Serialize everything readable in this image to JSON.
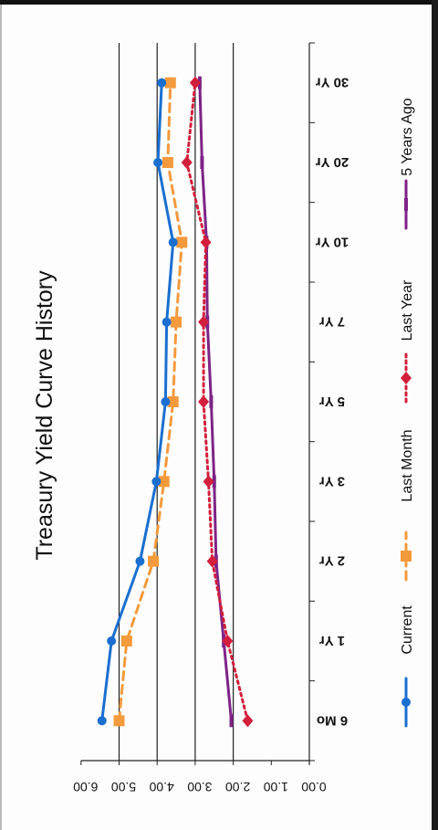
{
  "chart_data": {
    "type": "line",
    "title": "Treasury Yield Curve History",
    "categories": [
      "6 Mo",
      "1 Yr",
      "2 Yr",
      "3 Yr",
      "5 Yr",
      "7 Yr",
      "10 Yr",
      "20 Yr",
      "30 Yr"
    ],
    "y_ticks": [
      "0.00",
      "1.00",
      "2.00",
      "3.00",
      "4.00",
      "5.00",
      "6.00"
    ],
    "ylim": [
      0,
      6
    ],
    "grid": "horizontal major gridlines at 2.00, 3.00, 4.00, 5.00",
    "orientation": "rotated 90 degrees clockwise",
    "legend_position": "bottom",
    "series": [
      {
        "name": "Current",
        "values": [
          5.45,
          5.2,
          4.45,
          4.02,
          3.78,
          3.75,
          3.58,
          3.98,
          3.88
        ],
        "color": "#1a6fd0",
        "style": "solid",
        "marker": "circle"
      },
      {
        "name": "Last Month",
        "values": [
          5.0,
          4.8,
          4.1,
          3.82,
          3.58,
          3.5,
          3.35,
          3.72,
          3.65
        ],
        "color": "#f39a3c",
        "style": "dashed",
        "marker": "square"
      },
      {
        "name": "Last Year",
        "values": [
          1.62,
          2.15,
          2.55,
          2.65,
          2.78,
          2.78,
          2.72,
          3.22,
          3.0
        ],
        "color": "#d21f3c",
        "style": "dotted",
        "marker": "diamond"
      },
      {
        "name": "5 Years Ago",
        "values": [
          2.05,
          2.25,
          2.45,
          2.5,
          2.58,
          2.68,
          2.7,
          2.82,
          2.88
        ],
        "color": "#7e2386",
        "style": "solid",
        "marker": "bar"
      }
    ]
  }
}
